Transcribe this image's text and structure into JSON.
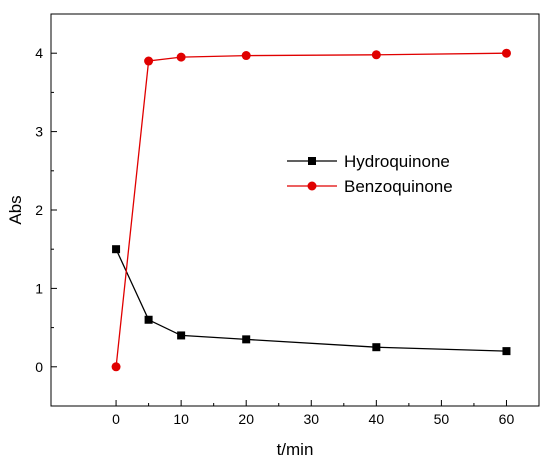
{
  "chart_data": {
    "type": "line",
    "title": "",
    "xlabel": "t/min",
    "ylabel": "Abs",
    "xlim": [
      -10,
      65
    ],
    "ylim": [
      -0.5,
      4.5
    ],
    "xticks": [
      0,
      10,
      20,
      30,
      40,
      50,
      60
    ],
    "yticks": [
      0,
      1,
      2,
      3,
      4
    ],
    "grid": false,
    "legend_position": "center-right",
    "series": [
      {
        "name": "Hydroquinone",
        "color": "#000000",
        "marker": "square",
        "x": [
          0,
          5,
          10,
          20,
          40,
          60
        ],
        "y": [
          1.5,
          0.6,
          0.4,
          0.35,
          0.25,
          0.2
        ]
      },
      {
        "name": "Benzoquinone",
        "color": "#e00000",
        "marker": "circle",
        "x": [
          0,
          5,
          10,
          20,
          40,
          60
        ],
        "y": [
          0.0,
          3.9,
          3.95,
          3.97,
          3.98,
          4.0
        ]
      }
    ]
  }
}
